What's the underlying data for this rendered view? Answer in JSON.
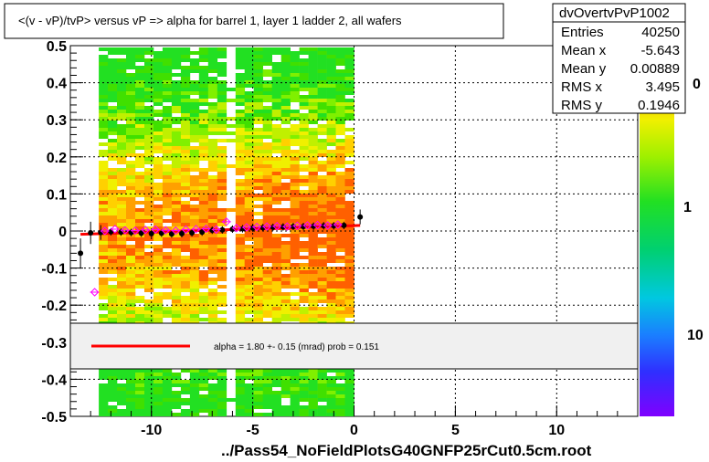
{
  "title": "<(v - vP)/tvP> versus   vP => alpha for barrel 1, layer 1 ladder 2, all wafers",
  "footer": "../Pass54_NoFieldPlotsG40GNFP25rCut0.5cm.root",
  "stats": {
    "name": "dvOvertvPvP1002",
    "rows": [
      {
        "label": "Entries",
        "value": "40250"
      },
      {
        "label": "Mean x",
        "value": "-5.643"
      },
      {
        "label": "Mean y",
        "value": "0.00889"
      },
      {
        "label": "RMS x",
        "value": "3.495"
      },
      {
        "label": "RMS y",
        "value": "0.1946"
      }
    ]
  },
  "fit_legend": {
    "text": "alpha =    1.80 +-  0.15 (mrad) prob = 0.151",
    "line_color": "#ff0000"
  },
  "palette": {
    "labels": [
      "0",
      "1",
      "10"
    ]
  },
  "chart_data": {
    "type": "heatmap",
    "title": "<(v - vP)/tvP> versus   vP => alpha for barrel 1, layer 1 ladder 2, all wafers",
    "xlim": [
      -14,
      14
    ],
    "ylim": [
      -0.5,
      0.5
    ],
    "x_ticks": [
      -10,
      -5,
      0,
      5,
      10
    ],
    "x_tick_labels": [
      "-10",
      "-5",
      "0",
      "5",
      "10"
    ],
    "y_ticks": [
      -0.5,
      -0.4,
      -0.3,
      -0.2,
      -0.1,
      0,
      0.1,
      0.2,
      0.3,
      0.4,
      0.5
    ],
    "y_tick_labels": [
      "-0.5",
      "-0.4",
      "-0.3",
      "-0.2",
      "-0.1",
      "0",
      "0.1",
      "0.2",
      "0.3",
      "0.4",
      "0.5"
    ],
    "grid": true,
    "heatmap_x_range": [
      -12.6,
      0
    ],
    "black_profile": {
      "x": [
        -13.5,
        -13,
        -12.5,
        -12,
        -11.5,
        -11,
        -10.5,
        -10,
        -9.5,
        -9,
        -8.5,
        -8,
        -7.5,
        -7,
        -6.5,
        -6,
        -5.5,
        -5,
        -4.5,
        -4,
        -3.5,
        -3,
        -2.5,
        -2,
        -1.5,
        -1,
        -0.5,
        0.3
      ],
      "y": [
        -0.06,
        -0.005,
        -0.004,
        -0.002,
        -0.003,
        -0.004,
        -0.006,
        -0.007,
        -0.006,
        -0.008,
        -0.007,
        -0.005,
        -0.003,
        0.002,
        0.003,
        0.005,
        0.006,
        0.008,
        0.009,
        0.01,
        0.011,
        0.012,
        0.012,
        0.013,
        0.014,
        0.014,
        0.015,
        0.038
      ],
      "err": [
        0.04,
        0.03,
        0.02,
        0.01,
        0.01,
        0.01,
        0.01,
        0.01,
        0.01,
        0.01,
        0.01,
        0.01,
        0.01,
        0.01,
        0.01,
        0.01,
        0.01,
        0.01,
        0.01,
        0.01,
        0.01,
        0.01,
        0.01,
        0.01,
        0.01,
        0.01,
        0.01,
        0.02
      ]
    },
    "magenta_profile": {
      "x": [
        -12.8,
        -12.3,
        -11.8,
        -11.3,
        -10.8,
        -10.3,
        -9.8,
        -9.3,
        -8.8,
        -8.3,
        -7.8,
        -7.3,
        -6.8,
        -6.3,
        -5.8,
        -5.3,
        -4.8,
        -4.3,
        -3.8,
        -3.3,
        -2.8,
        -2.3,
        -1.8,
        -1.3,
        -0.8
      ],
      "y": [
        -0.165,
        0.0,
        0.005,
        0.002,
        0.001,
        0.003,
        0.004,
        0.002,
        0.001,
        0.004,
        0.005,
        0.006,
        0.004,
        0.025,
        0.008,
        0.01,
        0.011,
        0.012,
        0.013,
        0.012,
        0.014,
        0.015,
        0.016,
        0.015,
        0.017
      ]
    },
    "fit_line": {
      "x": [
        -13.5,
        0.3
      ],
      "y": [
        -0.009,
        0.015
      ],
      "color": "#ff0000"
    }
  }
}
